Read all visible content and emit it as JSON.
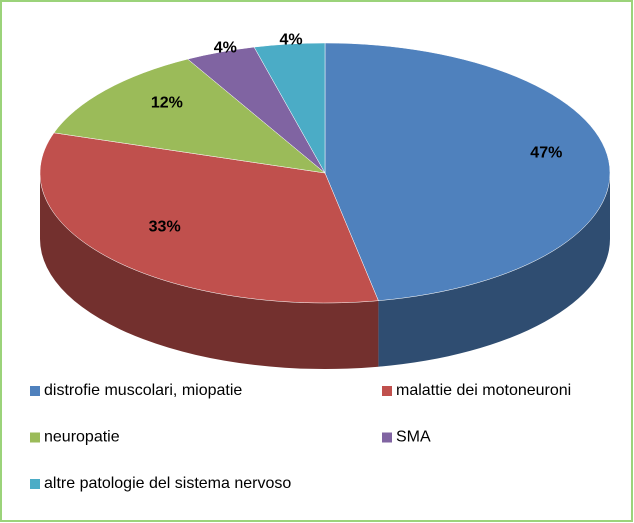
{
  "chart_data": {
    "type": "pie",
    "categories": [
      "distrofie muscolari, miopatie",
      "malattie dei motoneuroni",
      "neuropatie",
      "SMA",
      "altre patologie del sistema nervoso"
    ],
    "values": [
      47,
      33,
      12,
      4,
      4
    ],
    "value_labels": [
      "47%",
      "33%",
      "12%",
      "4%",
      "4%"
    ],
    "colors": [
      "#4f81bd",
      "#c0504d",
      "#9bbb59",
      "#8064a2",
      "#4bacc6"
    ],
    "legend": "bottom"
  }
}
